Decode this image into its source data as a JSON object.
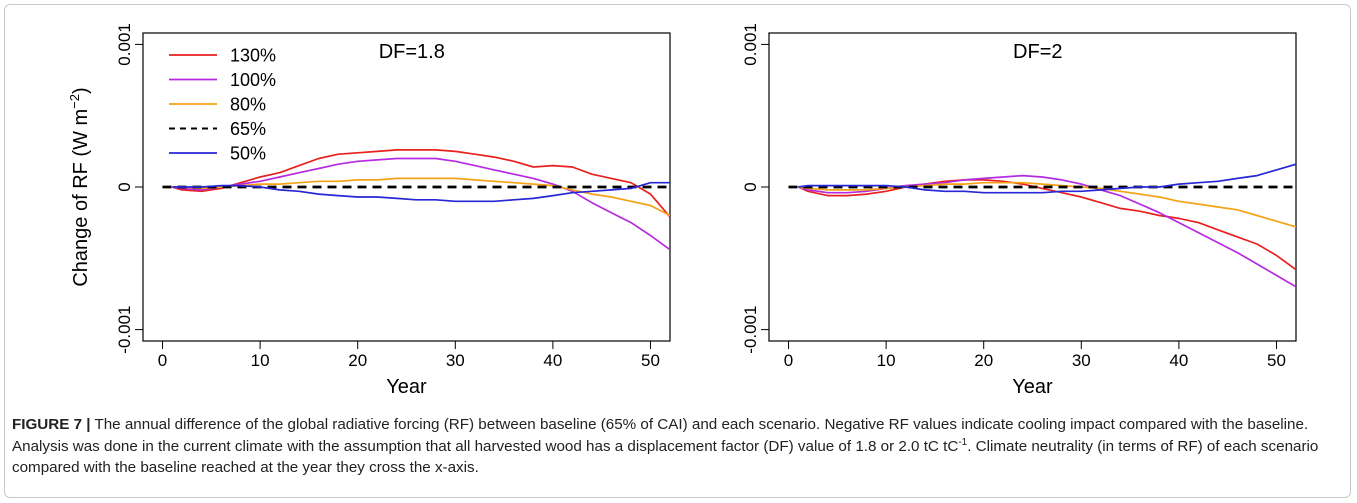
{
  "figure": {
    "label": "FIGURE 7 |",
    "caption_part1": " The annual difference of the global radiative forcing (RF) between baseline (65% of CAI) and each scenario. Negative RF values indicate cooling impact compared with the baseline. Analysis was done in the current climate with the assumption that all harvested wood has a displacement factor (DF) value of 1.8 or 2.0 tC tC",
    "caption_sup": "-1",
    "caption_part2": ". Climate neutrality (in terms of RF) of each scenario compared with the baseline reached at the year they cross the x-axis."
  },
  "colors": {
    "130%": "#e8211f",
    "100%": "#b52be0",
    "80%": "#f5a316",
    "65%": "#000000",
    "50%": "#2727d6"
  },
  "chart_data": [
    {
      "type": "line",
      "title": "DF=1.8",
      "xlabel": "Year",
      "ylabel": "Change of RF (W m^-2)",
      "ylabel_main": "Change of RF (W m",
      "ylabel_sup": "−2",
      "ylabel_close": ")",
      "xlim": [
        -2,
        52
      ],
      "ylim": [
        -0.00108,
        0.00108
      ],
      "xticks": [
        0,
        10,
        20,
        30,
        40,
        50
      ],
      "yticks": [
        -0.001,
        0,
        0.001
      ],
      "ytick_labels": [
        "-0.001",
        "0",
        "0.001"
      ],
      "grid": false,
      "legend": "top-left",
      "series": [
        {
          "name": "130%",
          "style": "solid",
          "x": [
            1,
            2,
            4,
            6,
            8,
            10,
            12,
            14,
            16,
            18,
            20,
            22,
            24,
            26,
            28,
            30,
            32,
            34,
            36,
            38,
            40,
            42,
            44,
            46,
            48,
            50,
            52
          ],
          "y": [
            0,
            -2e-05,
            -3e-05,
            -1e-05,
            3e-05,
            7e-05,
            0.0001,
            0.00015,
            0.0002,
            0.00023,
            0.00024,
            0.00025,
            0.00026,
            0.00026,
            0.00026,
            0.00025,
            0.00023,
            0.00021,
            0.00018,
            0.00014,
            0.00015,
            0.00014,
            9e-05,
            6e-05,
            3e-05,
            -5e-05,
            -0.00021
          ]
        },
        {
          "name": "100%",
          "style": "solid",
          "x": [
            1,
            2,
            4,
            6,
            8,
            10,
            12,
            14,
            16,
            18,
            20,
            22,
            24,
            26,
            28,
            30,
            32,
            34,
            36,
            38,
            40,
            42,
            44,
            46,
            48,
            50,
            52
          ],
          "y": [
            0,
            -1e-05,
            -2e-05,
            0,
            2e-05,
            4e-05,
            7e-05,
            0.0001,
            0.00013,
            0.00016,
            0.00018,
            0.00019,
            0.0002,
            0.0002,
            0.0002,
            0.00018,
            0.00015,
            0.00012,
            9e-05,
            6e-05,
            2e-05,
            -3e-05,
            -0.00011,
            -0.00018,
            -0.00025,
            -0.00034,
            -0.00044
          ]
        },
        {
          "name": "80%",
          "style": "solid",
          "x": [
            1,
            2,
            4,
            6,
            8,
            10,
            12,
            14,
            16,
            18,
            20,
            22,
            24,
            26,
            28,
            30,
            32,
            34,
            36,
            38,
            40,
            42,
            44,
            46,
            48,
            50,
            52
          ],
          "y": [
            0,
            0,
            -1e-05,
            0,
            1e-05,
            2e-05,
            2e-05,
            3e-05,
            4e-05,
            4e-05,
            5e-05,
            5e-05,
            6e-05,
            6e-05,
            6e-05,
            6e-05,
            5e-05,
            4e-05,
            3e-05,
            2e-05,
            1e-05,
            -2e-05,
            -5e-05,
            -7e-05,
            -0.0001,
            -0.00013,
            -0.0002
          ]
        },
        {
          "name": "65%",
          "style": "dashed",
          "x": [
            0,
            52
          ],
          "y": [
            0,
            0
          ]
        },
        {
          "name": "50%",
          "style": "solid",
          "x": [
            1,
            2,
            4,
            6,
            8,
            10,
            12,
            14,
            16,
            18,
            20,
            22,
            24,
            26,
            28,
            30,
            32,
            34,
            36,
            38,
            40,
            42,
            44,
            46,
            48,
            50,
            52
          ],
          "y": [
            0,
            0,
            0,
            1e-05,
            1e-05,
            0,
            -2e-05,
            -3e-05,
            -5e-05,
            -6e-05,
            -7e-05,
            -7e-05,
            -8e-05,
            -9e-05,
            -9e-05,
            -0.0001,
            -0.0001,
            -0.0001,
            -9e-05,
            -8e-05,
            -6e-05,
            -4e-05,
            -3e-05,
            -2e-05,
            -1e-05,
            3e-05,
            3e-05
          ]
        }
      ]
    },
    {
      "type": "line",
      "title": "DF=2",
      "xlabel": "Year",
      "ylabel": "",
      "xlim": [
        -2,
        52
      ],
      "ylim": [
        -0.00108,
        0.00108
      ],
      "xticks": [
        0,
        10,
        20,
        30,
        40,
        50
      ],
      "yticks": [
        -0.001,
        0,
        0.001
      ],
      "ytick_labels": [
        "-0.001",
        "0",
        "0.001"
      ],
      "grid": false,
      "series": [
        {
          "name": "130%",
          "style": "solid",
          "x": [
            1,
            2,
            4,
            6,
            8,
            10,
            12,
            14,
            16,
            18,
            20,
            22,
            24,
            26,
            28,
            30,
            32,
            34,
            36,
            38,
            40,
            42,
            44,
            46,
            48,
            50,
            52
          ],
          "y": [
            0,
            -3e-05,
            -6e-05,
            -6e-05,
            -5e-05,
            -3e-05,
            0,
            2e-05,
            4e-05,
            5e-05,
            5e-05,
            4e-05,
            2e-05,
            -1e-05,
            -4e-05,
            -7e-05,
            -0.00011,
            -0.00015,
            -0.00017,
            -0.0002,
            -0.00022,
            -0.00025,
            -0.0003,
            -0.00035,
            -0.0004,
            -0.00048,
            -0.00058
          ]
        },
        {
          "name": "100%",
          "style": "solid",
          "x": [
            1,
            2,
            4,
            6,
            8,
            10,
            12,
            14,
            16,
            18,
            20,
            22,
            24,
            26,
            28,
            30,
            32,
            34,
            36,
            38,
            40,
            42,
            44,
            46,
            48,
            50,
            52
          ],
          "y": [
            0,
            -2e-05,
            -4e-05,
            -4e-05,
            -3e-05,
            -1e-05,
            1e-05,
            2e-05,
            3e-05,
            5e-05,
            6e-05,
            7e-05,
            8e-05,
            7e-05,
            5e-05,
            2e-05,
            -2e-05,
            -6e-05,
            -0.00012,
            -0.00018,
            -0.00025,
            -0.00032,
            -0.00039,
            -0.00046,
            -0.00054,
            -0.00062,
            -0.0007
          ]
        },
        {
          "name": "80%",
          "style": "solid",
          "x": [
            1,
            2,
            4,
            6,
            8,
            10,
            12,
            14,
            16,
            18,
            20,
            22,
            24,
            26,
            28,
            30,
            32,
            34,
            36,
            38,
            40,
            42,
            44,
            46,
            48,
            50,
            52
          ],
          "y": [
            0,
            -1e-05,
            -2e-05,
            -2e-05,
            -2e-05,
            -1e-05,
            0,
            1e-05,
            2e-05,
            2e-05,
            3e-05,
            3e-05,
            3e-05,
            2e-05,
            1e-05,
            0,
            -1e-05,
            -3e-05,
            -5e-05,
            -7e-05,
            -0.0001,
            -0.00012,
            -0.00014,
            -0.00016,
            -0.0002,
            -0.00024,
            -0.00028
          ]
        },
        {
          "name": "65%",
          "style": "dashed",
          "x": [
            0,
            52
          ],
          "y": [
            0,
            0
          ]
        },
        {
          "name": "50%",
          "style": "solid",
          "x": [
            1,
            2,
            4,
            6,
            8,
            10,
            12,
            14,
            16,
            18,
            20,
            22,
            24,
            26,
            28,
            30,
            32,
            34,
            36,
            38,
            40,
            42,
            44,
            46,
            48,
            50,
            52
          ],
          "y": [
            0,
            1e-05,
            1e-05,
            1e-05,
            1e-05,
            1e-05,
            0,
            -2e-05,
            -3e-05,
            -3e-05,
            -4e-05,
            -4e-05,
            -4e-05,
            -4e-05,
            -3e-05,
            -3e-05,
            -2e-05,
            -1e-05,
            0,
            0,
            2e-05,
            3e-05,
            4e-05,
            6e-05,
            8e-05,
            0.00012,
            0.00016
          ]
        }
      ]
    }
  ]
}
